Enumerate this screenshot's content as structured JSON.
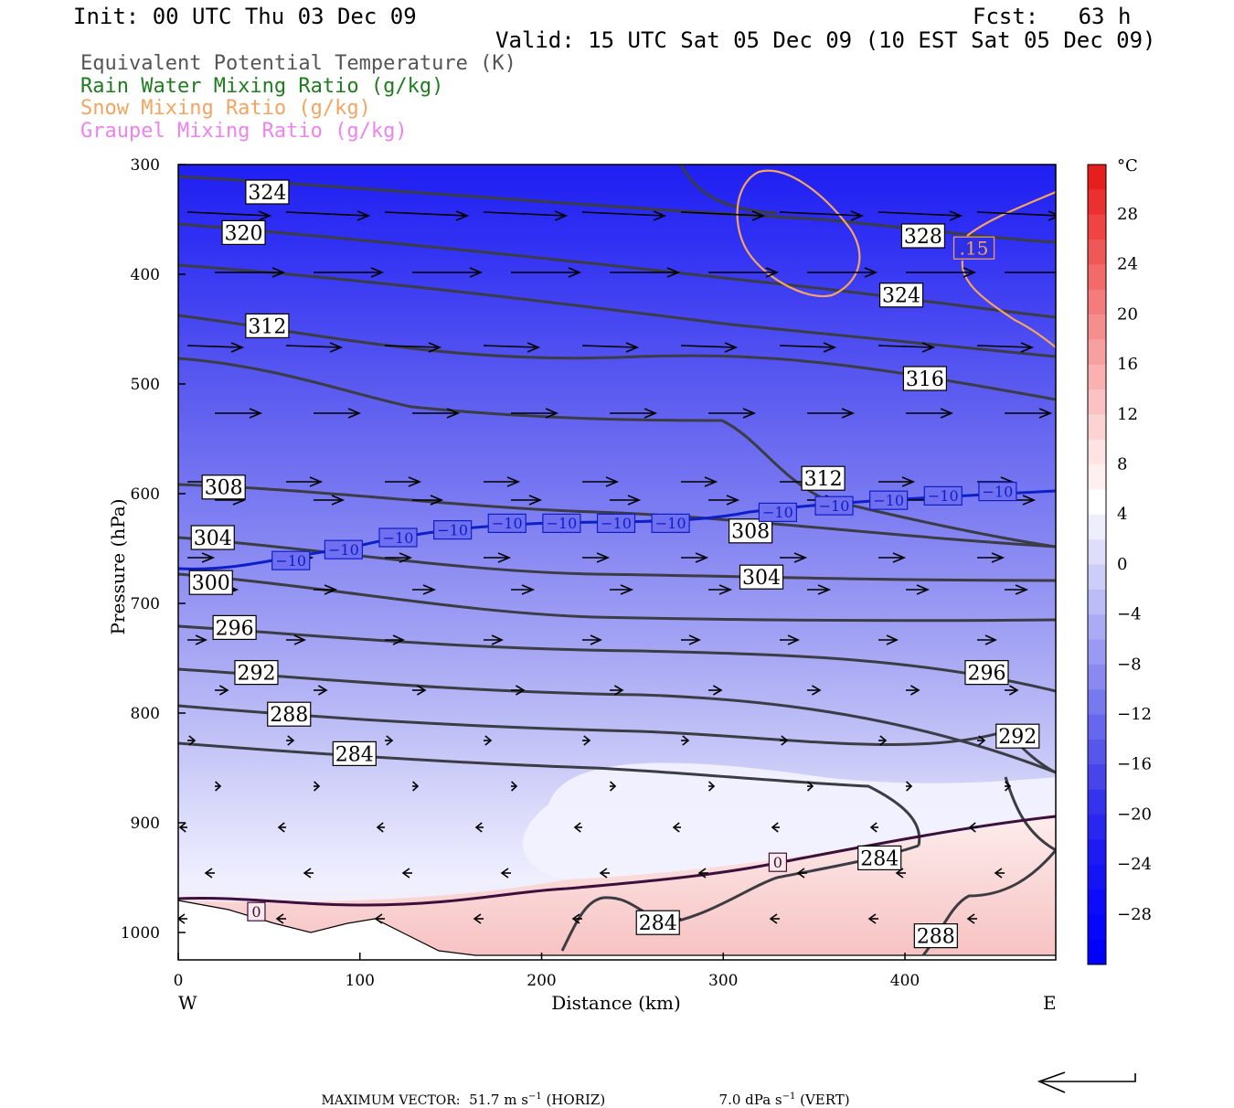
{
  "header": {
    "init": "Init: 00 UTC Thu 03 Dec 09",
    "fcst": "Fcst:   63 h",
    "valid": "Valid: 15 UTC Sat 05 Dec 09 (10 EST Sat 05 Dec 09)"
  },
  "legend": [
    {
      "label": "Equivalent Potential Temperature (K)",
      "color": "#555555"
    },
    {
      "label": "Rain Water Mixing Ratio (g/kg)",
      "color": "#1e7d1e"
    },
    {
      "label": "Snow Mixing Ratio (g/kg)",
      "color": "#f4a460"
    },
    {
      "label": "Graupel Mixing Ratio (g/kg)",
      "color": "#ee82ee"
    }
  ],
  "chart_data": {
    "type": "heatmap",
    "ylabel": "Pressure (hPa)",
    "xlabel": "Distance (km)",
    "x_range": [
      0,
      483
    ],
    "y_range": [
      1025,
      300
    ],
    "x_ticks": [
      "0",
      "100",
      "200",
      "300",
      "400"
    ],
    "y_ticks": [
      "300",
      "400",
      "500",
      "600",
      "700",
      "800",
      "900",
      "1000"
    ],
    "x_end_labels": {
      "west": "W",
      "east": "E"
    },
    "colorbar": {
      "unit": "°C",
      "labels": [
        "28",
        "24",
        "20",
        "16",
        "12",
        "8",
        "4",
        "0",
        "−4",
        "−8",
        "−12",
        "−16",
        "−20",
        "−24",
        "−28"
      ]
    },
    "theta_e_labels": [
      {
        "text": "324",
        "km": 49,
        "p": 325
      },
      {
        "text": "320",
        "km": 36,
        "p": 362
      },
      {
        "text": "328",
        "km": 410,
        "p": 365
      },
      {
        "text": "324",
        "km": 398,
        "p": 419
      },
      {
        "text": "312",
        "km": 49,
        "p": 447
      },
      {
        "text": "316",
        "km": 411,
        "p": 495
      },
      {
        "text": "312",
        "km": 355,
        "p": 586
      },
      {
        "text": "308",
        "km": 25,
        "p": 594
      },
      {
        "text": "304",
        "km": 19,
        "p": 640
      },
      {
        "text": "308",
        "km": 315,
        "p": 634
      },
      {
        "text": "300",
        "km": 18,
        "p": 681
      },
      {
        "text": "304",
        "km": 321,
        "p": 676
      },
      {
        "text": "296",
        "km": 31,
        "p": 722
      },
      {
        "text": "292",
        "km": 43,
        "p": 763
      },
      {
        "text": "296",
        "km": 445,
        "p": 763
      },
      {
        "text": "288",
        "km": 61,
        "p": 801
      },
      {
        "text": "292",
        "km": 462,
        "p": 821
      },
      {
        "text": "284",
        "km": 97,
        "p": 837
      },
      {
        "text": "284",
        "km": 386,
        "p": 932
      },
      {
        "text": "284",
        "km": 264,
        "p": 991
      },
      {
        "text": "288",
        "km": 417,
        "p": 1003
      }
    ],
    "temperature_labels": [
      {
        "text": "−10",
        "km": 62,
        "p": 661
      },
      {
        "text": "−10",
        "km": 91,
        "p": 651
      },
      {
        "text": "−10",
        "km": 121,
        "p": 640
      },
      {
        "text": "−10",
        "km": 151,
        "p": 633
      },
      {
        "text": "−10",
        "km": 181,
        "p": 627
      },
      {
        "text": "−10",
        "km": 211,
        "p": 627
      },
      {
        "text": "−10",
        "km": 241,
        "p": 627
      },
      {
        "text": "−10",
        "km": 271,
        "p": 627
      },
      {
        "text": "−10",
        "km": 330,
        "p": 617
      },
      {
        "text": "−10",
        "km": 361,
        "p": 611
      },
      {
        "text": "−10",
        "km": 391,
        "p": 606
      },
      {
        "text": "−10",
        "km": 421,
        "p": 602
      },
      {
        "text": "−10",
        "km": 451,
        "p": 598
      },
      {
        "text": "0",
        "km": 330,
        "p": 936
      },
      {
        "text": "0",
        "km": 43,
        "p": 981
      }
    ],
    "snow_labels": [
      {
        "text": ".15",
        "km": 438,
        "p": 376
      }
    ]
  },
  "footer": {
    "max_vector_label": "MAXIMUM VECTOR:",
    "horiz_value": "51.7 m s",
    "horiz_exp": "−1",
    "horiz_tag": " (HORIZ)",
    "vert_value": "7.0 dPa s",
    "vert_exp": "−1",
    "vert_tag": " (VERT)"
  }
}
